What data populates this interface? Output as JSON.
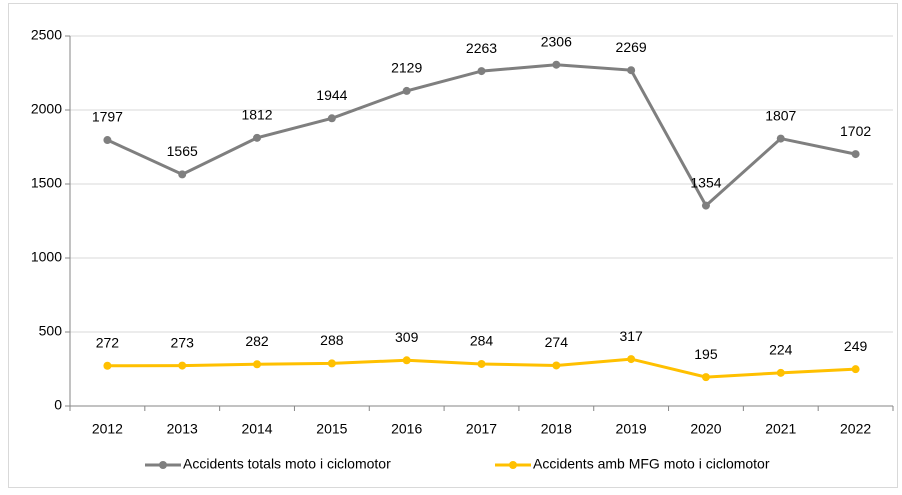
{
  "chart_data": {
    "type": "line",
    "categories": [
      "2012",
      "2013",
      "2014",
      "2015",
      "2016",
      "2017",
      "2018",
      "2019",
      "2020",
      "2021",
      "2022"
    ],
    "series": [
      {
        "name": "Accidents totals moto i ciclomotor",
        "color": "#7f7f7f",
        "values": [
          1797,
          1565,
          1812,
          1944,
          2129,
          2263,
          2306,
          2269,
          1354,
          1807,
          1702
        ]
      },
      {
        "name": "Accidents amb MFG moto i ciclomotor",
        "color": "#ffc000",
        "values": [
          272,
          273,
          282,
          288,
          309,
          284,
          274,
          317,
          195,
          224,
          249
        ]
      }
    ],
    "ylim": [
      0,
      2500
    ],
    "yticks": [
      0,
      500,
      1000,
      1500,
      2000,
      2500
    ],
    "grid": true,
    "legend": "bottom"
  }
}
